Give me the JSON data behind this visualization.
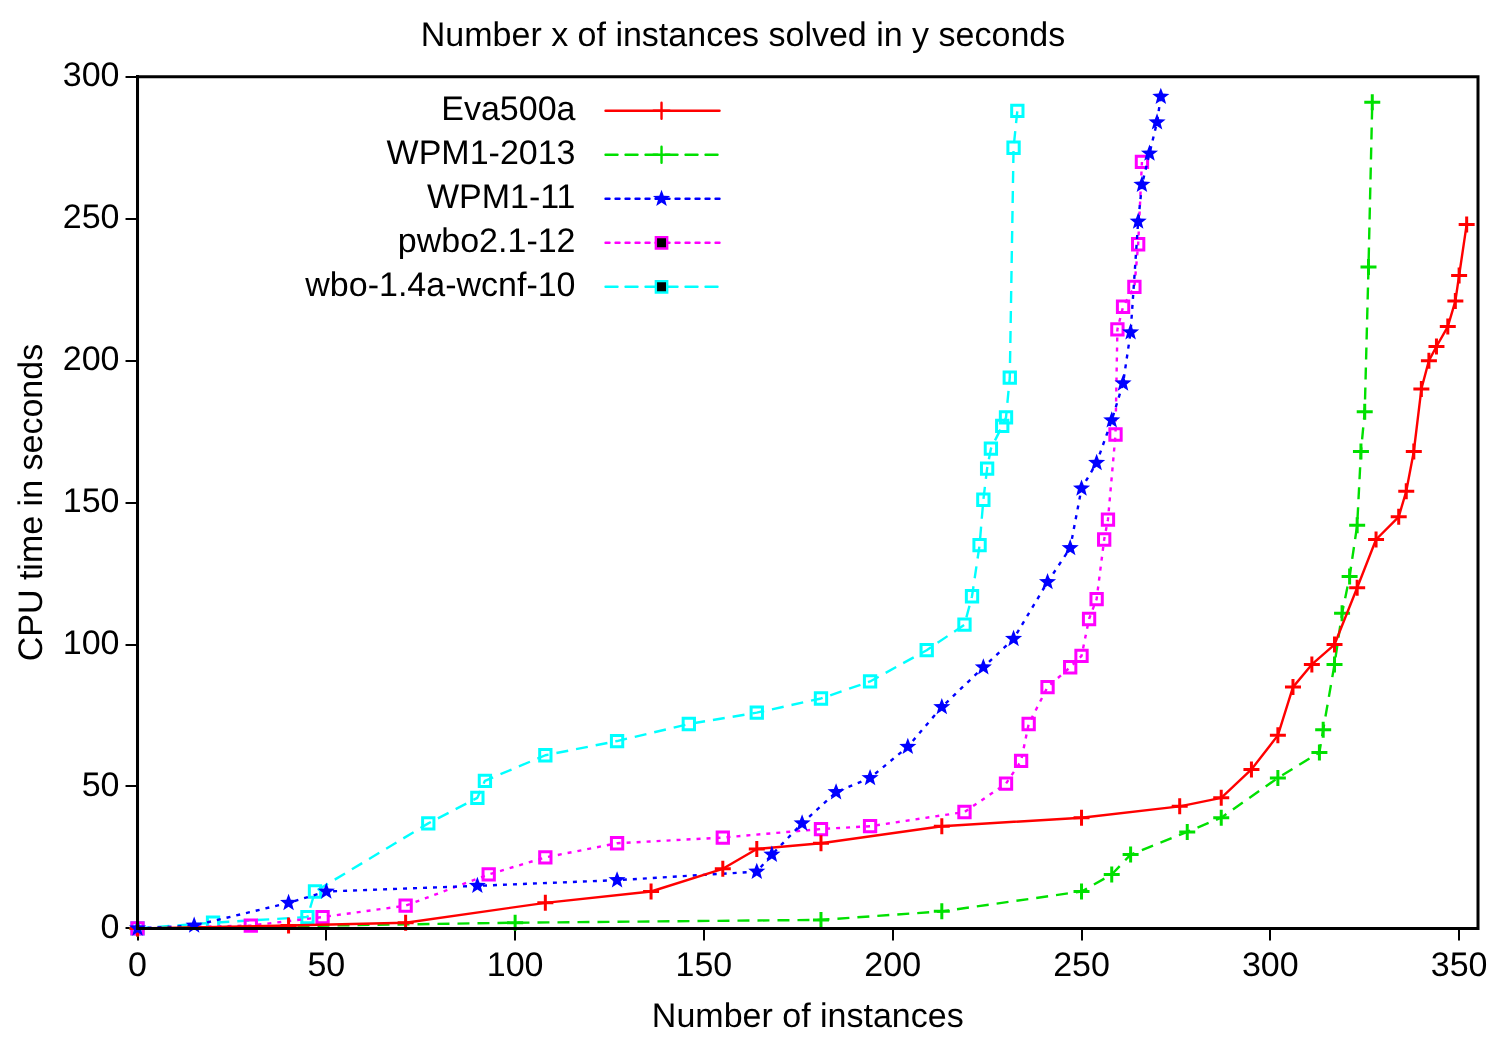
{
  "chart_data": {
    "type": "line",
    "title": "Number x of instances solved in y seconds",
    "xlabel": "Number of instances",
    "ylabel": "CPU time in seconds",
    "xlim": [
      0,
      355
    ],
    "xticks": [
      0,
      50,
      100,
      150,
      200,
      250,
      300,
      350
    ],
    "ylim": [
      0,
      300
    ],
    "yticks": [
      0,
      50,
      100,
      150,
      200,
      250,
      300
    ],
    "legend": "top left",
    "grid": false,
    "series": [
      {
        "name": "Eva500a",
        "color": "#ff0000",
        "marker": "cross",
        "line_style": "solid",
        "x": [
          0,
          40,
          71,
          108,
          136,
          155,
          164,
          181,
          213,
          250,
          276,
          287,
          295,
          302,
          306,
          311,
          317,
          323,
          328,
          334,
          336,
          338,
          340,
          342,
          344,
          347,
          349,
          350,
          352
        ],
        "values": [
          0,
          1,
          2,
          9,
          13,
          21,
          28,
          30,
          36,
          39,
          43,
          46,
          56,
          68,
          85,
          93,
          100,
          120,
          137,
          145,
          154,
          168,
          190,
          200,
          205,
          212,
          221,
          230,
          248
        ]
      },
      {
        "name": "WPM1-2013",
        "color": "#00e000",
        "marker": "cross",
        "line_style": "dashed",
        "x": [
          0,
          100,
          181,
          213,
          250,
          258,
          263,
          278,
          287,
          302,
          313,
          314,
          317,
          319,
          321,
          323,
          324,
          325,
          326,
          327
        ],
        "values": [
          0,
          2,
          3,
          6,
          13,
          19,
          26,
          34,
          39,
          53,
          62,
          70,
          93,
          111,
          124,
          142,
          168,
          182,
          233,
          291
        ]
      },
      {
        "name": "WPM1-11",
        "color": "#0000ff",
        "marker": "star",
        "line_style": "dotted",
        "x": [
          0,
          15,
          40,
          50,
          90,
          127,
          164,
          168,
          176,
          185,
          194,
          204,
          213,
          224,
          232,
          241,
          247,
          250,
          254,
          258,
          261,
          263,
          265,
          266,
          268,
          270,
          271
        ],
        "values": [
          0,
          1,
          9,
          13,
          15,
          17,
          20,
          26,
          37,
          48,
          53,
          64,
          78,
          92,
          102,
          122,
          134,
          155,
          164,
          179,
          192,
          210,
          249,
          262,
          273,
          284,
          293
        ]
      },
      {
        "name": "pwbo2.1-12",
        "color": "#ff00ff",
        "marker": "square",
        "line_style": "dotted",
        "x": [
          0,
          30,
          49,
          71,
          93,
          108,
          127,
          155,
          181,
          194,
          219,
          230,
          234,
          236,
          241,
          247,
          250,
          252,
          254,
          256,
          257,
          259,
          259.5,
          261,
          264,
          265,
          266
        ],
        "values": [
          0,
          1,
          4,
          8,
          19,
          25,
          30,
          32,
          35,
          36,
          41,
          51,
          59,
          72,
          85,
          92,
          96,
          109,
          116,
          137,
          144,
          174,
          211,
          219,
          226,
          241,
          270
        ]
      },
      {
        "name": "wbo-1.4a-wcnf-10",
        "color": "#00ffff",
        "marker": "square",
        "line_style": "dashed",
        "x": [
          0,
          20,
          45,
          47,
          77,
          90,
          92,
          108,
          127,
          146,
          164,
          181,
          194,
          209,
          219,
          221,
          223,
          224,
          225,
          226,
          229,
          230,
          231,
          232,
          233
        ],
        "values": [
          0,
          2,
          4,
          13,
          37,
          46,
          52,
          61,
          66,
          72,
          76,
          81,
          87,
          98,
          107,
          117,
          135,
          151,
          162,
          169,
          177,
          180,
          194,
          275,
          288
        ]
      }
    ]
  }
}
